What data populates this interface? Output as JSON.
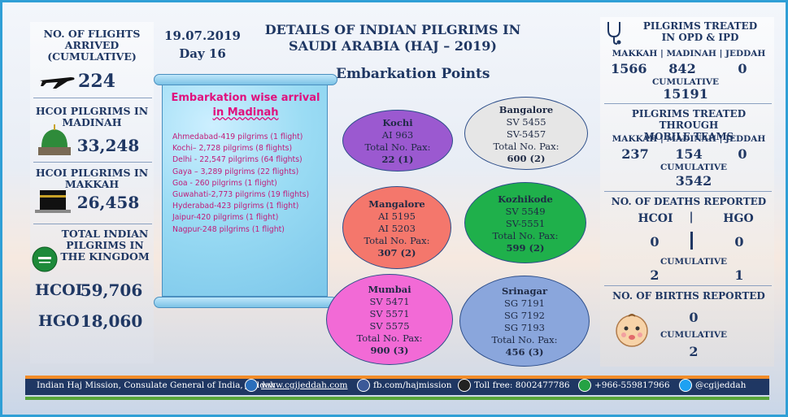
{
  "header": {
    "title_line1": "DETAILS OF INDIAN PILGRIMS IN",
    "title_line2": "SAUDI ARABIA (HAJ – 2019)",
    "subtitle": "Embarkation Points",
    "date": "19.07.2019",
    "day": "Day 16"
  },
  "left": {
    "flights_label": "NO. OF FLIGHTS ARRIVED (CUMULATIVE)",
    "flights_value": "224",
    "madinah_label": "HCOI PILGRIMS IN MADINAH",
    "madinah_value": "33,248",
    "makkah_label": "HCOI PILGRIMS IN MAKKAH",
    "makkah_value": "26,458",
    "total_label": "TOTAL INDIAN PILGRIMS IN THE KINGDOM",
    "hcoi_label": "HCOI",
    "hcoi_value": "59,706",
    "hgo_label": "HGO",
    "hgo_value": "18,060"
  },
  "scroll": {
    "heading_line1": "Embarkation wise arrival",
    "heading_line2": "in Madinah",
    "items": [
      "Ahmedabad-419 pilgrims (1 flight)",
      "Kochi– 2,728 pilgrims (8 flights)",
      "Delhi - 22,547 pilgrims (64 flights)",
      "Gaya – 3,289 pilgrims (22 flights)",
      "Goa - 260 pilgrims (1 flight)",
      "Guwahati-2,773 pilgrims (19 flights)",
      "Hyderabad-423  pilgrims (1 flight)",
      "Jaipur-420 pilgrims (1 flight)",
      "Nagpur-248 pilgrims (1 flight)"
    ]
  },
  "embarkation": {
    "pax_label": "Total No. Pax:",
    "points": [
      {
        "name": "Kochi",
        "flights": [
          "AI 963"
        ],
        "pax": "22 (1)",
        "color": "#9b59d0"
      },
      {
        "name": "Bangalore",
        "flights": [
          "SV 5455",
          "SV-5457"
        ],
        "pax": "600 (2)",
        "color": "#e6e6e6"
      },
      {
        "name": "Mangalore",
        "flights": [
          "AI 5195",
          "AI 5203"
        ],
        "pax": "307 (2)",
        "color": "#f4776c"
      },
      {
        "name": "Kozhikode",
        "flights": [
          "SV 5549",
          "SV-5551"
        ],
        "pax": "599 (2)",
        "color": "#1fb04b"
      },
      {
        "name": "Mumbai",
        "flights": [
          "SV 5471",
          "SV 5571",
          "SV 5575"
        ],
        "pax": "900 (3)",
        "color": "#f26ad6"
      },
      {
        "name": "Srinagar",
        "flights": [
          "SG 7191",
          "SG 7192",
          "SG 7193"
        ],
        "pax": "456 (3)",
        "color": "#8aa6dc"
      }
    ]
  },
  "right": {
    "opd_title_line1": "PILGRIMS TREATED",
    "opd_title_line2": "IN OPD & IPD",
    "cities": "MAKKAH | MADINAH | JEDDAH",
    "opd_makkah": "1566",
    "opd_madinah": "842",
    "opd_jeddah": "0",
    "cumulative_label": "CUMULATIVE",
    "opd_cumulative": "15191",
    "mobile_title_line1": "PILGRIMS TREATED THROUGH",
    "mobile_title_line2": "MOBILE TEAMS",
    "mobile_makkah": "237",
    "mobile_madinah": "154",
    "mobile_jeddah": "0",
    "mobile_cumulative": "3542",
    "deaths_title": "NO. OF DEATHS REPORTED",
    "deaths_hcoi_label": "HCOI",
    "deaths_hgo_label": "HGO",
    "deaths_hcoi": "0",
    "deaths_hgo": "0",
    "deaths_cum_hcoi": "2",
    "deaths_cum_hgo": "1",
    "births_title": "NO. OF BIRTHS REPORTED",
    "births_value": "0",
    "births_cumulative": "2"
  },
  "footer": {
    "mission": "Indian Haj Mission, Consulate General of India, Jeddah",
    "website": "www.cgijeddah.com",
    "facebook": "fb.com/hajmission",
    "tollfree": "Toll free: 8002477786",
    "phone": "+966-559817966",
    "twitter": "@cgijeddah"
  },
  "colors": {
    "navy": "#1f3763",
    "magenta": "#e0117e",
    "orange": "#f28c28",
    "green": "#58a53a"
  }
}
